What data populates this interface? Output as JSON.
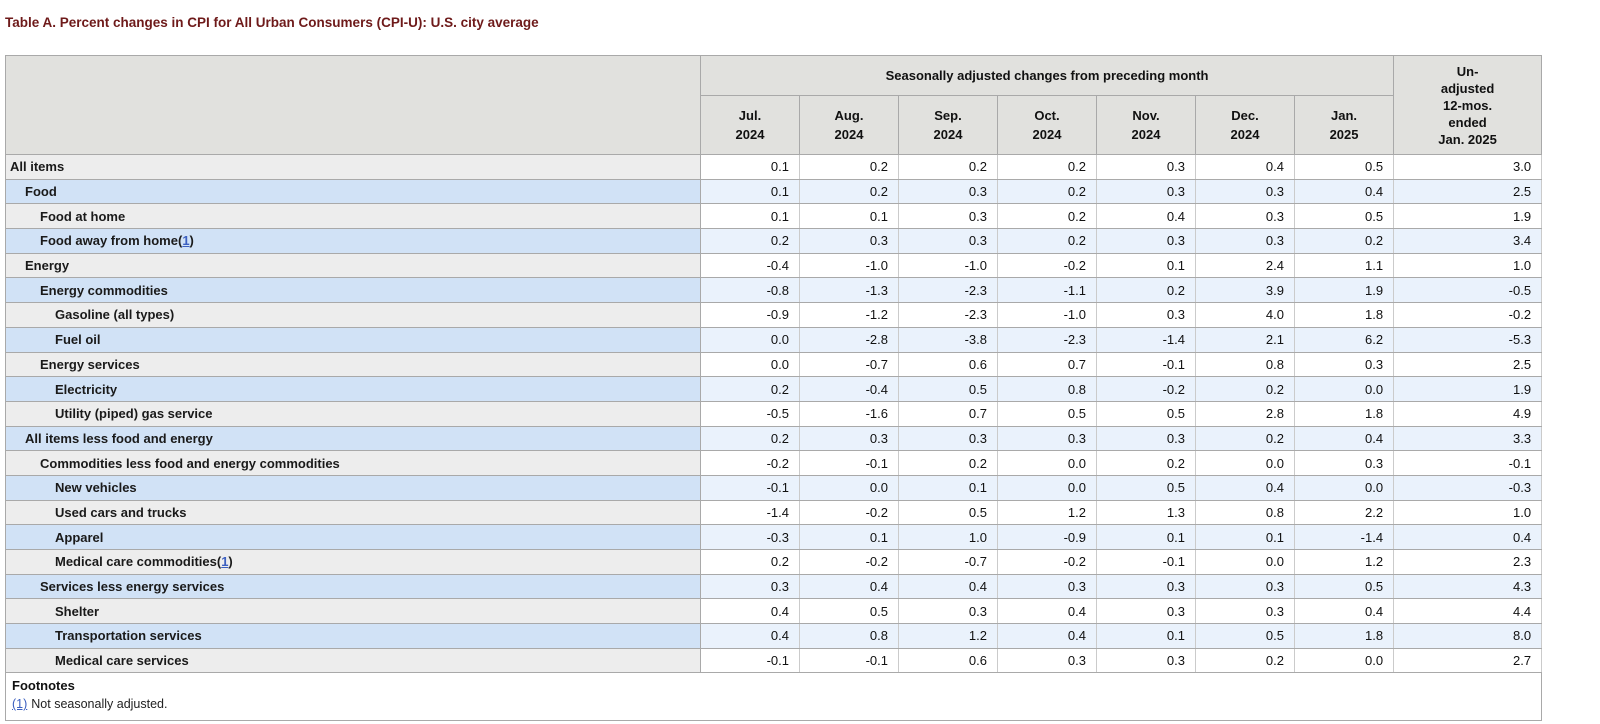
{
  "page": {
    "title": "Table A. Percent changes in CPI for All Urban Consumers (CPI-U): U.S. city average"
  },
  "colors": {
    "title_text": "#6e1a1a",
    "header_bg": "#e1e1de",
    "stub_gray": "#ededed",
    "stub_blue": "#d1e2f6",
    "cell_white": "#ffffff",
    "cell_blue": "#eaf2fc",
    "link": "#3b5fc0",
    "border": "#a9a9a9"
  },
  "table": {
    "group_header": "Seasonally adjusted changes from preceding month",
    "unadjusted_header": "Un-\nadjusted\n12-mos.\nended\nJan. 2025",
    "columns": [
      {
        "month": "Jul.",
        "year": "2024"
      },
      {
        "month": "Aug.",
        "year": "2024"
      },
      {
        "month": "Sep.",
        "year": "2024"
      },
      {
        "month": "Oct.",
        "year": "2024"
      },
      {
        "month": "Nov.",
        "year": "2024"
      },
      {
        "month": "Dec.",
        "year": "2024"
      },
      {
        "month": "Jan.",
        "year": "2025"
      }
    ],
    "rows": [
      {
        "label": "All items",
        "indent": 0,
        "footnote": "",
        "values": [
          "0.1",
          "0.2",
          "0.2",
          "0.2",
          "0.3",
          "0.4",
          "0.5",
          "3.0"
        ]
      },
      {
        "label": "Food",
        "indent": 1,
        "footnote": "",
        "values": [
          "0.1",
          "0.2",
          "0.3",
          "0.2",
          "0.3",
          "0.3",
          "0.4",
          "2.5"
        ]
      },
      {
        "label": "Food at home",
        "indent": 2,
        "footnote": "",
        "values": [
          "0.1",
          "0.1",
          "0.3",
          "0.2",
          "0.4",
          "0.3",
          "0.5",
          "1.9"
        ]
      },
      {
        "label": "Food away from home",
        "indent": 2,
        "footnote": "1",
        "values": [
          "0.2",
          "0.3",
          "0.3",
          "0.2",
          "0.3",
          "0.3",
          "0.2",
          "3.4"
        ]
      },
      {
        "label": "Energy",
        "indent": 1,
        "footnote": "",
        "values": [
          "-0.4",
          "-1.0",
          "-1.0",
          "-0.2",
          "0.1",
          "2.4",
          "1.1",
          "1.0"
        ]
      },
      {
        "label": "Energy commodities",
        "indent": 2,
        "footnote": "",
        "values": [
          "-0.8",
          "-1.3",
          "-2.3",
          "-1.1",
          "0.2",
          "3.9",
          "1.9",
          "-0.5"
        ]
      },
      {
        "label": "Gasoline (all types)",
        "indent": 3,
        "footnote": "",
        "values": [
          "-0.9",
          "-1.2",
          "-2.3",
          "-1.0",
          "0.3",
          "4.0",
          "1.8",
          "-0.2"
        ]
      },
      {
        "label": "Fuel oil",
        "indent": 3,
        "footnote": "",
        "values": [
          "0.0",
          "-2.8",
          "-3.8",
          "-2.3",
          "-1.4",
          "2.1",
          "6.2",
          "-5.3"
        ]
      },
      {
        "label": "Energy services",
        "indent": 2,
        "footnote": "",
        "values": [
          "0.0",
          "-0.7",
          "0.6",
          "0.7",
          "-0.1",
          "0.8",
          "0.3",
          "2.5"
        ]
      },
      {
        "label": "Electricity",
        "indent": 3,
        "footnote": "",
        "values": [
          "0.2",
          "-0.4",
          "0.5",
          "0.8",
          "-0.2",
          "0.2",
          "0.0",
          "1.9"
        ]
      },
      {
        "label": "Utility (piped) gas service",
        "indent": 3,
        "footnote": "",
        "values": [
          "-0.5",
          "-1.6",
          "0.7",
          "0.5",
          "0.5",
          "2.8",
          "1.8",
          "4.9"
        ]
      },
      {
        "label": "All items less food and energy",
        "indent": 1,
        "footnote": "",
        "values": [
          "0.2",
          "0.3",
          "0.3",
          "0.3",
          "0.3",
          "0.2",
          "0.4",
          "3.3"
        ]
      },
      {
        "label": "Commodities less food and energy commodities",
        "indent": 2,
        "footnote": "",
        "values": [
          "-0.2",
          "-0.1",
          "0.2",
          "0.0",
          "0.2",
          "0.0",
          "0.3",
          "-0.1"
        ]
      },
      {
        "label": "New vehicles",
        "indent": 3,
        "footnote": "",
        "values": [
          "-0.1",
          "0.0",
          "0.1",
          "0.0",
          "0.5",
          "0.4",
          "0.0",
          "-0.3"
        ]
      },
      {
        "label": "Used cars and trucks",
        "indent": 3,
        "footnote": "",
        "values": [
          "-1.4",
          "-0.2",
          "0.5",
          "1.2",
          "1.3",
          "0.8",
          "2.2",
          "1.0"
        ]
      },
      {
        "label": "Apparel",
        "indent": 3,
        "footnote": "",
        "values": [
          "-0.3",
          "0.1",
          "1.0",
          "-0.9",
          "0.1",
          "0.1",
          "-1.4",
          "0.4"
        ]
      },
      {
        "label": "Medical care commodities",
        "indent": 3,
        "footnote": "1",
        "values": [
          "0.2",
          "-0.2",
          "-0.7",
          "-0.2",
          "-0.1",
          "0.0",
          "1.2",
          "2.3"
        ]
      },
      {
        "label": "Services less energy services",
        "indent": 2,
        "footnote": "",
        "values": [
          "0.3",
          "0.4",
          "0.4",
          "0.3",
          "0.3",
          "0.3",
          "0.5",
          "4.3"
        ]
      },
      {
        "label": "Shelter",
        "indent": 3,
        "footnote": "",
        "values": [
          "0.4",
          "0.5",
          "0.3",
          "0.4",
          "0.3",
          "0.3",
          "0.4",
          "4.4"
        ]
      },
      {
        "label": "Transportation services",
        "indent": 3,
        "footnote": "",
        "values": [
          "0.4",
          "0.8",
          "1.2",
          "0.4",
          "0.1",
          "0.5",
          "1.8",
          "8.0"
        ]
      },
      {
        "label": "Medical care services",
        "indent": 3,
        "footnote": "",
        "values": [
          "-0.1",
          "-0.1",
          "0.6",
          "0.3",
          "0.3",
          "0.2",
          "0.0",
          "2.7"
        ]
      }
    ],
    "footnotes": {
      "heading": "Footnotes",
      "items": [
        {
          "marker": "(1)",
          "text": "Not seasonally adjusted."
        }
      ]
    }
  }
}
